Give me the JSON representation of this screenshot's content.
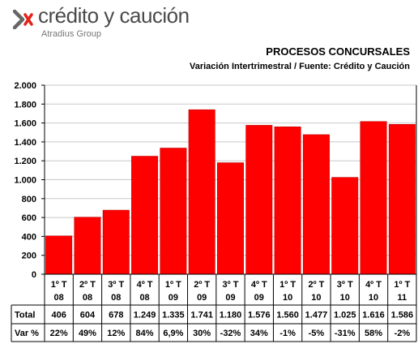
{
  "logo": {
    "name": "crédito y caución",
    "group": "Atradius Group",
    "mark_color": "#e2231a"
  },
  "chart_data": {
    "type": "bar",
    "title": "PROCESOS CONCURSALES",
    "subtitle": "Variación Intertrimestral / Fuente: Crédito y Caución",
    "categories": [
      [
        "1º T",
        "08"
      ],
      [
        "2º T",
        "08"
      ],
      [
        "3º T",
        "08"
      ],
      [
        "4º T",
        "08"
      ],
      [
        "1º T",
        "09"
      ],
      [
        "2º T",
        "09"
      ],
      [
        "3º T",
        "09"
      ],
      [
        "4º T",
        "09"
      ],
      [
        "1º T",
        "10"
      ],
      [
        "2º T",
        "10"
      ],
      [
        "3º T",
        "10"
      ],
      [
        "4º T",
        "10"
      ],
      [
        "1º T",
        "11"
      ]
    ],
    "series": [
      {
        "name": "Total",
        "values": [
          406,
          604,
          678,
          1249,
          1335,
          1741,
          1180,
          1576,
          1560,
          1477,
          1025,
          1616,
          1586
        ],
        "color": "#ff0000"
      }
    ],
    "ylim": [
      0,
      2000
    ],
    "yticks": [
      0,
      200,
      400,
      600,
      800,
      1000,
      1200,
      1400,
      1600,
      1800,
      2000
    ],
    "ytick_labels": [
      "0",
      "200",
      "400",
      "600",
      "800",
      "1.000",
      "1.200",
      "1.400",
      "1.600",
      "1.800",
      "2.000"
    ],
    "grid": true,
    "table": {
      "rows": [
        {
          "label": "Total",
          "cells": [
            "406",
            "604",
            "678",
            "1.249",
            "1.335",
            "1.741",
            "1.180",
            "1.576",
            "1.560",
            "1.477",
            "1.025",
            "1.616",
            "1.586"
          ]
        },
        {
          "label": "Var %",
          "cells": [
            "22%",
            "49%",
            "12%",
            "84%",
            "6,9%",
            "30%",
            "-32%",
            "34%",
            "-1%",
            "-5%",
            "-31%",
            "58%",
            "-2%"
          ]
        }
      ]
    }
  }
}
